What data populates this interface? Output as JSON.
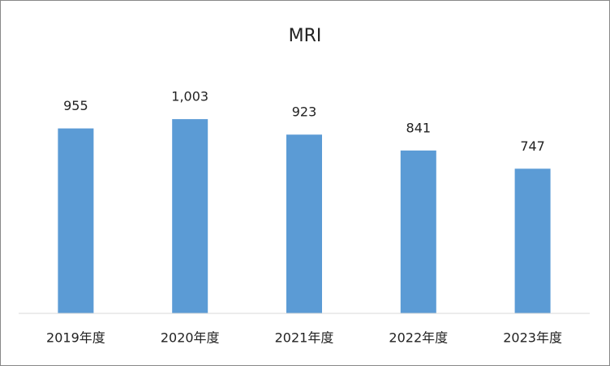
{
  "chart_data": {
    "type": "bar",
    "title": "MRI",
    "categories": [
      "2019年度",
      "2020年度",
      "2021年度",
      "2022年度",
      "2023年度"
    ],
    "values": [
      955,
      1003,
      923,
      841,
      747
    ],
    "value_labels": [
      "955",
      "1,003",
      "923",
      "841",
      "747"
    ],
    "color": "#5b9bd5",
    "ylim": [
      0,
      1200
    ],
    "grid": false
  }
}
